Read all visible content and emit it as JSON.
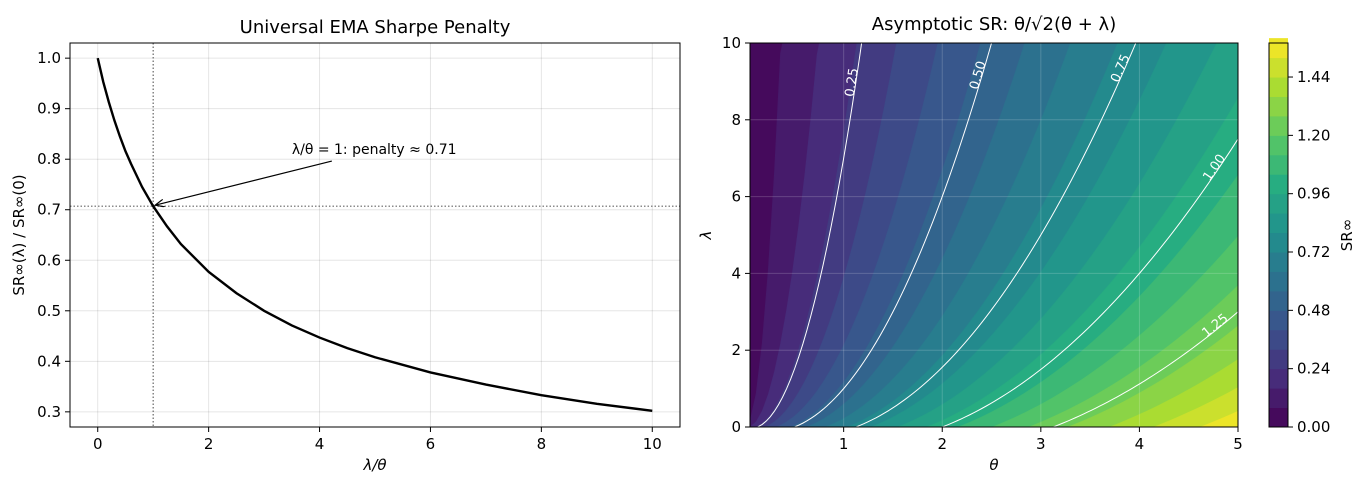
{
  "chart_data": [
    {
      "type": "line",
      "title": "Universal EMA Sharpe Penalty",
      "xlabel": "λ/θ",
      "ylabel": "SR∞(λ) / SR∞(0)",
      "xlim": [
        -0.5,
        10.5
      ],
      "ylim": [
        0.27,
        1.03
      ],
      "xticks": [
        "0",
        "2",
        "4",
        "6",
        "8",
        "10"
      ],
      "yticks": [
        "0.3",
        "0.4",
        "0.5",
        "0.6",
        "0.7",
        "0.8",
        "0.9",
        "1.0"
      ],
      "grid": true,
      "series": [
        {
          "x": [
            0,
            0.1,
            0.2,
            0.3,
            0.4,
            0.5,
            0.6,
            0.8,
            1,
            1.25,
            1.5,
            2,
            2.5,
            3,
            3.5,
            4,
            4.5,
            5,
            6,
            7,
            8,
            9,
            10
          ],
          "y": [
            1.0,
            0.953,
            0.913,
            0.877,
            0.845,
            0.816,
            0.791,
            0.745,
            0.707,
            0.667,
            0.632,
            0.577,
            0.535,
            0.5,
            0.471,
            0.447,
            0.426,
            0.408,
            0.378,
            0.354,
            0.333,
            0.316,
            0.302
          ],
          "color": "#000000"
        }
      ],
      "reference_lines": {
        "x": 1,
        "y": 0.707
      },
      "annotation": {
        "text": "λ/θ = 1: penalty ≈ 0.71",
        "point": [
          1,
          0.707
        ],
        "text_at": [
          3.5,
          0.82
        ]
      }
    },
    {
      "type": "heatmap",
      "title": "Asymptotic SR: θ/√2(θ + λ)",
      "xlabel": "θ",
      "ylabel": "λ",
      "xlim": [
        0.05,
        5
      ],
      "ylim": [
        0,
        10
      ],
      "xticks": [
        "1",
        "2",
        "3",
        "4",
        "5"
      ],
      "yticks": [
        "0",
        "2",
        "4",
        "6",
        "8",
        "10"
      ],
      "colorbar": {
        "label": "SR∞",
        "range": [
          0,
          1.58
        ],
        "levels_step": 0.08,
        "ticks": [
          "0.00",
          "0.24",
          "0.48",
          "0.72",
          "0.96",
          "1.20",
          "1.44"
        ],
        "colormap": "viridis"
      },
      "contour_labels": [
        "0.25",
        "0.50",
        "0.75",
        "1.00",
        "1.25"
      ]
    }
  ]
}
